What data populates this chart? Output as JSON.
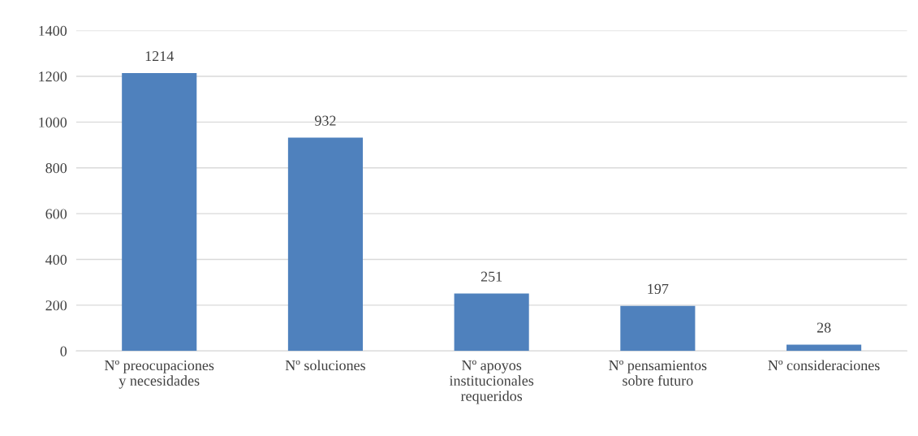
{
  "chart_data": {
    "type": "bar",
    "categories": [
      "Nº preocupaciones y necesidades",
      "Nº soluciones",
      "Nº apoyos institucionales requeridos",
      "Nº pensamientos sobre futuro",
      "Nº consideraciones"
    ],
    "values": [
      1214,
      932,
      251,
      197,
      28
    ],
    "color": "#4f81bd",
    "ylim": [
      0,
      1400
    ],
    "yticks": [
      0,
      200,
      400,
      600,
      800,
      1000,
      1200,
      1400
    ],
    "grid": "y",
    "data_labels": true,
    "legend": false
  }
}
